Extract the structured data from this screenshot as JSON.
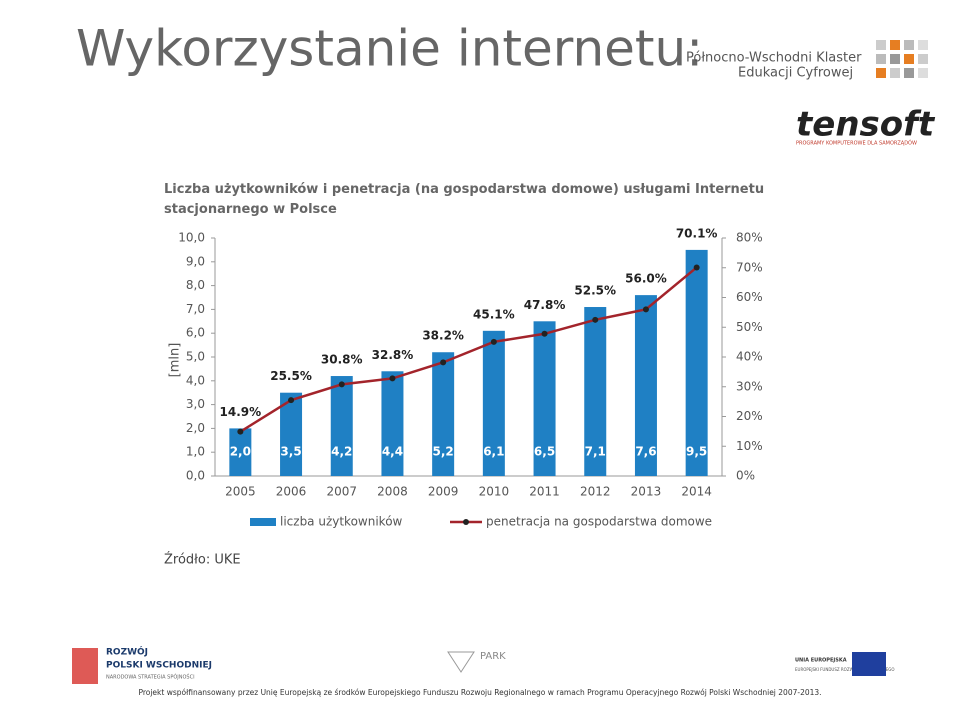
{
  "slide_title": "Wykorzystanie internetu:",
  "header_logo": {
    "line1": "Północno-Wschodni Klaster",
    "line2": "Edukacji Cyfrowej",
    "brand": "tensoft",
    "tagline": "PROGRAMY KOMPUTEROWE DLA SAMORZĄDÓW"
  },
  "chart_data": {
    "type": "bar_line",
    "title": "Liczba użytkowników i penetracja (na gospodarstwa domowe) usługami Internetu stacjonarnego w Polsce",
    "y_label": "[mln]",
    "source": "Źródło: UKE",
    "categories": [
      "2005",
      "2006",
      "2007",
      "2008",
      "2009",
      "2010",
      "2011",
      "2012",
      "2013",
      "2014"
    ],
    "series": [
      {
        "name": "liczba użytkowników",
        "type": "bar",
        "color": "#1f80c4",
        "values": [
          2.0,
          3.5,
          4.2,
          4.4,
          5.2,
          6.1,
          6.5,
          7.1,
          7.6,
          9.5
        ],
        "value_labels": [
          "2,0",
          "3,5",
          "4,2",
          "4,4",
          "5,2",
          "6,1",
          "6,5",
          "7,1",
          "7,6",
          "9,5"
        ]
      },
      {
        "name": "penetracja na gospodarstwa domowe",
        "type": "line",
        "axis": "y2",
        "color": "#a3242b",
        "values": [
          14.9,
          25.5,
          30.8,
          32.8,
          38.2,
          45.1,
          47.8,
          52.5,
          56.0,
          70.1
        ],
        "value_labels": [
          "14.9%",
          "25.5%",
          "30.8%",
          "32.8%",
          "38.2%",
          "45.1%",
          "47.8%",
          "52.5%",
          "56.0%",
          "70.1%"
        ]
      }
    ],
    "ylim": [
      0,
      10
    ],
    "yticks": [
      {
        "value": 0,
        "label": "0,0"
      },
      {
        "value": 1,
        "label": "1,0"
      },
      {
        "value": 2,
        "label": "2,0"
      },
      {
        "value": 3,
        "label": "3,0"
      },
      {
        "value": 4,
        "label": "4,0"
      },
      {
        "value": 5,
        "label": "5,0"
      },
      {
        "value": 6,
        "label": "6,0"
      },
      {
        "value": 7,
        "label": "7,0"
      },
      {
        "value": 8,
        "label": "8,0"
      },
      {
        "value": 9,
        "label": "9,0"
      },
      {
        "value": 10,
        "label": "10,0"
      }
    ],
    "y2lim": [
      0,
      80
    ],
    "y2ticks": [
      {
        "value": 0,
        "label": "0%"
      },
      {
        "value": 10,
        "label": "10%"
      },
      {
        "value": 20,
        "label": "20%"
      },
      {
        "value": 30,
        "label": "30%"
      },
      {
        "value": 40,
        "label": "40%"
      },
      {
        "value": 50,
        "label": "50%"
      },
      {
        "value": 60,
        "label": "60%"
      },
      {
        "value": 70,
        "label": "70%"
      },
      {
        "value": 80,
        "label": "80%"
      }
    ],
    "grid": false,
    "legend": "bottom"
  },
  "footer": {
    "rpw1": "ROZWÓJ",
    "rpw2": "POLSKI WSCHODNIEJ",
    "rpw3": "NARODOWA STRATEGIA SPÓJNOŚCI",
    "park": "PARK",
    "eu1": "UNIA EUROPEJSKA",
    "eu2": "EUROPEJSKI FUNDUSZ ROZWOJU REGIONALNEGO",
    "note": "Projekt współfinansowany przez Unię Europejską ze środków Europejskiego Funduszu Rozwoju Regionalnego w ramach Programu Operacyjnego Rozwój Polski Wschodniej 2007-2013."
  }
}
